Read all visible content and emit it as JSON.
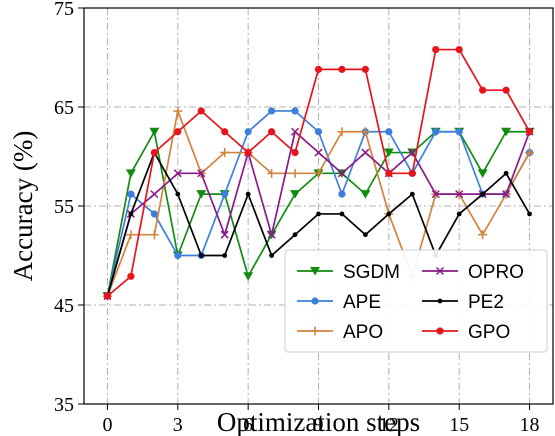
{
  "chart_data": {
    "type": "line",
    "title": "",
    "xlabel": "Optimization steps",
    "ylabel": "Accuracy (%)",
    "xlim": [
      -1,
      19
    ],
    "ylim": [
      35,
      75
    ],
    "xticks": [
      0,
      3,
      6,
      9,
      12,
      15,
      18
    ],
    "yticks": [
      35,
      45,
      55,
      65,
      75
    ],
    "grid": true,
    "legend": "bottom-right",
    "x": [
      0,
      1,
      2,
      3,
      4,
      5,
      6,
      7,
      8,
      9,
      10,
      11,
      12,
      13,
      14,
      15,
      16,
      17,
      18
    ],
    "series": [
      {
        "name": "SGDM",
        "color": "#118c11",
        "marker": "triangle-down",
        "values": [
          45.9,
          58.3,
          62.5,
          50.0,
          56.2,
          56.2,
          47.9,
          52.1,
          56.2,
          58.3,
          58.3,
          56.2,
          60.4,
          60.4,
          62.5,
          62.5,
          58.3,
          62.5,
          62.5
        ]
      },
      {
        "name": "APE",
        "color": "#3d7fdc",
        "marker": "circle",
        "values": [
          45.9,
          56.2,
          54.2,
          50.0,
          50.0,
          56.2,
          62.5,
          64.6,
          64.6,
          62.5,
          56.2,
          62.5,
          62.5,
          58.3,
          62.5,
          62.5,
          56.2,
          56.2,
          60.4
        ]
      },
      {
        "name": "APO",
        "color": "#d1843c",
        "marker": "plus",
        "values": [
          45.9,
          52.1,
          52.1,
          64.6,
          58.3,
          60.4,
          60.4,
          58.3,
          58.3,
          58.3,
          62.5,
          62.5,
          54.2,
          47.9,
          56.2,
          56.2,
          52.1,
          56.2,
          60.4
        ]
      },
      {
        "name": "OPRO",
        "color": "#8a1a8a",
        "marker": "x",
        "values": [
          45.9,
          54.2,
          56.2,
          58.3,
          58.3,
          52.1,
          60.4,
          52.1,
          62.5,
          60.4,
          58.3,
          60.4,
          58.3,
          60.4,
          56.2,
          56.2,
          56.2,
          56.2,
          62.5
        ]
      },
      {
        "name": "PE2",
        "color": "#000000",
        "marker": "dot",
        "values": [
          45.9,
          54.2,
          60.4,
          56.2,
          50.0,
          50.0,
          56.2,
          50.0,
          52.1,
          54.2,
          54.2,
          52.1,
          54.2,
          56.2,
          50.0,
          54.2,
          56.2,
          58.3,
          54.2
        ]
      },
      {
        "name": "GPO",
        "color": "#e8141c",
        "marker": "circle",
        "values": [
          45.9,
          47.9,
          60.4,
          62.5,
          64.6,
          62.5,
          60.4,
          62.5,
          60.4,
          68.8,
          68.8,
          68.8,
          58.3,
          58.3,
          70.8,
          70.8,
          66.7,
          66.7,
          62.5
        ]
      }
    ]
  }
}
